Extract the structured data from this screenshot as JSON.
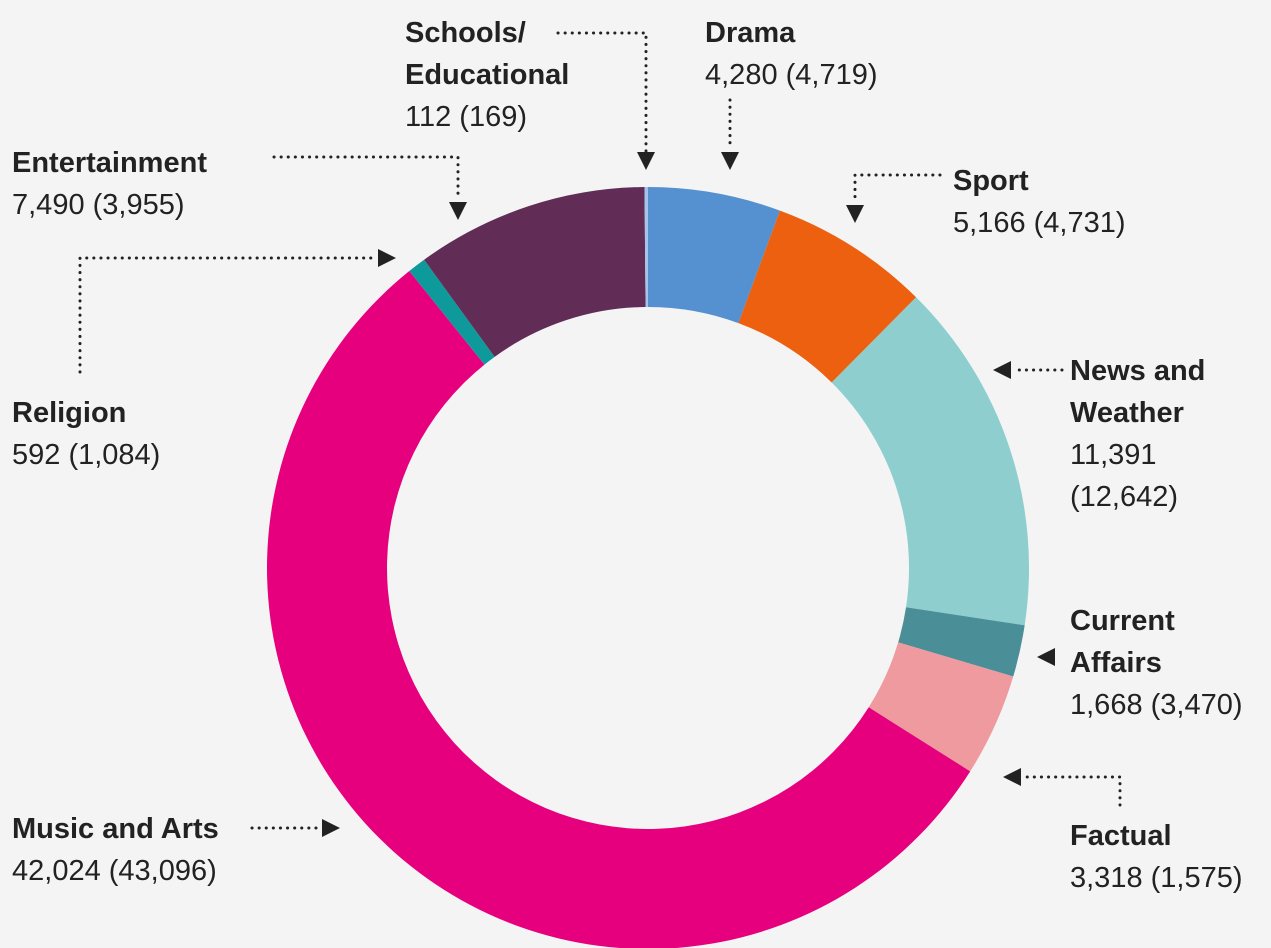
{
  "chart_data": {
    "type": "donut",
    "categories": [
      "Drama",
      "Sport",
      "News and Weather",
      "Current Affairs",
      "Factual",
      "Music and Arts",
      "Religion",
      "Entertainment",
      "Schools/ Educational"
    ],
    "values": [
      4280,
      5166,
      11391,
      1668,
      3318,
      42024,
      592,
      7490,
      112
    ],
    "value_labels": [
      "4,280",
      "5,166",
      "11,391",
      "1,668",
      "3,318",
      "42,024",
      "592",
      "7,490",
      "112"
    ],
    "previous_values": [
      4719,
      4731,
      12642,
      3470,
      1575,
      43096,
      1084,
      3955,
      169
    ],
    "previous_labels": [
      "(4,719)",
      "(4,731)",
      "(12,642)",
      "(3,470)",
      "(1,575)",
      "(43,096)",
      "(1,084)",
      "(3,955)",
      "(169)"
    ],
    "colors": [
      "#5591d0",
      "#ec600f",
      "#8ecece",
      "#4a8e98",
      "#ef9a9f",
      "#e6007e",
      "#0e9a9b",
      "#612c55",
      "#a6c4ea"
    ]
  }
}
